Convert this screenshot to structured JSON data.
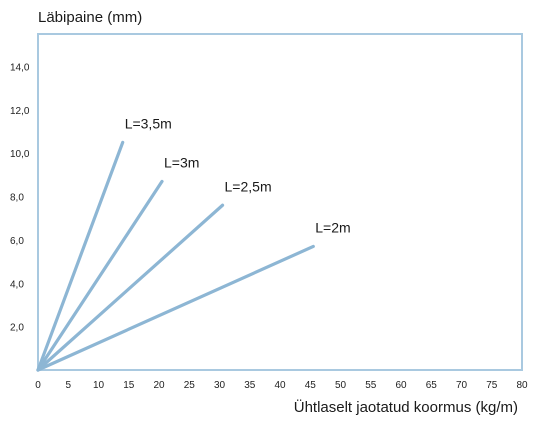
{
  "chart_data": {
    "type": "line",
    "ylabel": "Läbipaine (mm)",
    "xlabel": "Ühtlaselt jaotatud koormus (kg/m)",
    "xlim": [
      0,
      80
    ],
    "ylim": [
      0,
      15.5
    ],
    "x_ticks": [
      "0",
      "5",
      "10",
      "15",
      "20",
      "25",
      "30",
      "35",
      "40",
      "45",
      "50",
      "55",
      "60",
      "65",
      "70",
      "75",
      "80"
    ],
    "y_ticks": [
      "2,0",
      "4,0",
      "6,0",
      "8,0",
      "10,0",
      "12,0",
      "14,0"
    ],
    "series": [
      {
        "name": "L=3,5m",
        "x": [
          0,
          14
        ],
        "y": [
          0,
          10.5
        ]
      },
      {
        "name": "L=3m",
        "x": [
          0,
          20.5
        ],
        "y": [
          0,
          8.7
        ]
      },
      {
        "name": "L=2,5m",
        "x": [
          0,
          30.5
        ],
        "y": [
          0,
          7.6
        ]
      },
      {
        "name": "L=2m",
        "x": [
          0,
          45.5
        ],
        "y": [
          0,
          5.7
        ]
      }
    ],
    "grid": false,
    "colors": {
      "line": "#8db6d4",
      "frame": "#a9c9e0",
      "text": "#1a1a1a"
    }
  }
}
